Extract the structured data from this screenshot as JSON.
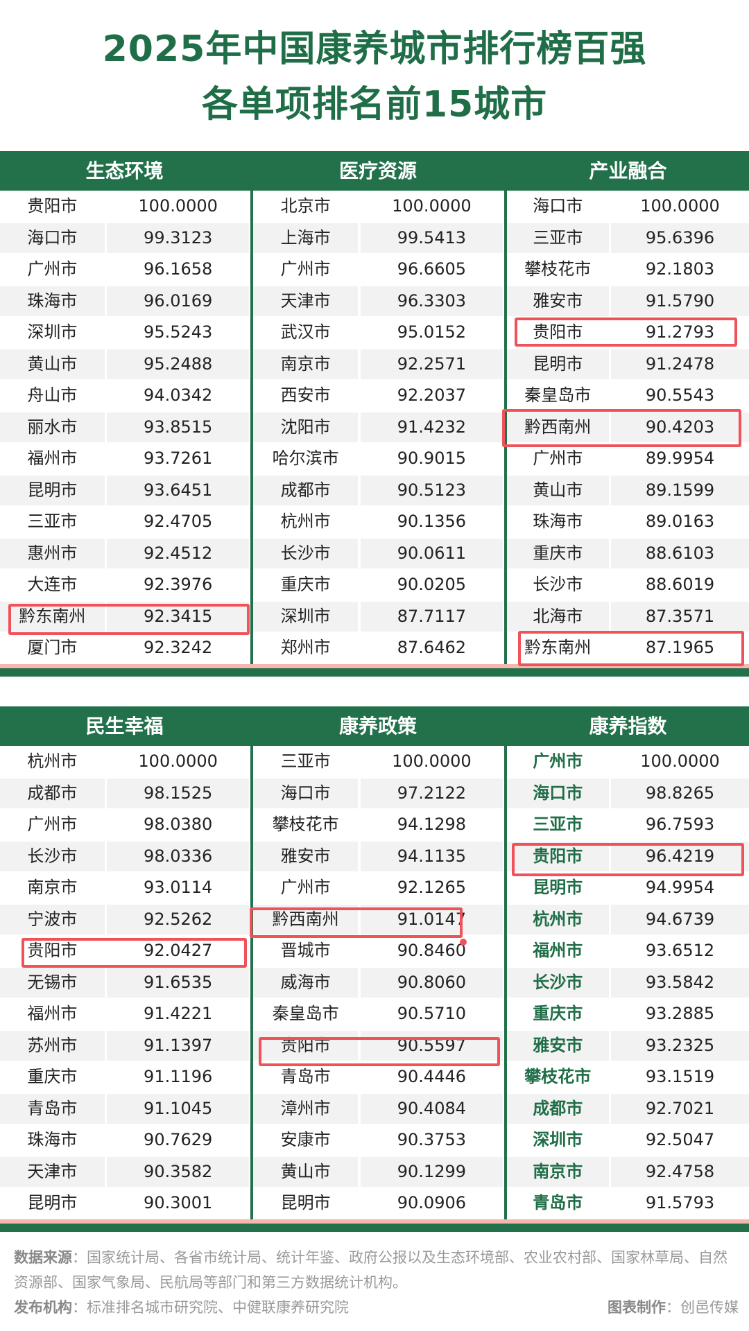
{
  "title": {
    "line1": "2025年中国康养城市排行榜百强",
    "line2": "各单项排名前15城市"
  },
  "colors": {
    "green": "#22714b",
    "highlight": "#f0525a",
    "pink_line": "#f6b5ae"
  },
  "tables": [
    {
      "panels": [
        {
          "header": "生态环境",
          "rows": [
            [
              "贵阳市",
              "100.0000"
            ],
            [
              "海口市",
              "99.3123"
            ],
            [
              "广州市",
              "96.1658"
            ],
            [
              "珠海市",
              "96.0169"
            ],
            [
              "深圳市",
              "95.5243"
            ],
            [
              "黄山市",
              "95.2488"
            ],
            [
              "舟山市",
              "94.0342"
            ],
            [
              "丽水市",
              "93.8515"
            ],
            [
              "福州市",
              "93.7261"
            ],
            [
              "昆明市",
              "93.6451"
            ],
            [
              "三亚市",
              "92.4705"
            ],
            [
              "惠州市",
              "92.4512"
            ],
            [
              "大连市",
              "92.3976"
            ],
            [
              "黔东南州",
              "92.3415"
            ],
            [
              "厦门市",
              "92.3242"
            ]
          ]
        },
        {
          "header": "医疗资源",
          "rows": [
            [
              "北京市",
              "100.0000"
            ],
            [
              "上海市",
              "99.5413"
            ],
            [
              "广州市",
              "96.6605"
            ],
            [
              "天津市",
              "96.3303"
            ],
            [
              "武汉市",
              "95.0152"
            ],
            [
              "南京市",
              "92.2571"
            ],
            [
              "西安市",
              "92.2037"
            ],
            [
              "沈阳市",
              "91.4232"
            ],
            [
              "哈尔滨市",
              "90.9015"
            ],
            [
              "成都市",
              "90.5123"
            ],
            [
              "杭州市",
              "90.1356"
            ],
            [
              "长沙市",
              "90.0611"
            ],
            [
              "重庆市",
              "90.0205"
            ],
            [
              "深圳市",
              "87.7117"
            ],
            [
              "郑州市",
              "87.6462"
            ]
          ]
        },
        {
          "header": "产业融合",
          "rows": [
            [
              "海口市",
              "100.0000"
            ],
            [
              "三亚市",
              "95.6396"
            ],
            [
              "攀枝花市",
              "92.1803"
            ],
            [
              "雅安市",
              "91.5790"
            ],
            [
              "贵阳市",
              "91.2793"
            ],
            [
              "昆明市",
              "91.2478"
            ],
            [
              "秦皇岛市",
              "90.5543"
            ],
            [
              "黔西南州",
              "90.4203"
            ],
            [
              "广州市",
              "89.9954"
            ],
            [
              "黄山市",
              "89.1599"
            ],
            [
              "珠海市",
              "89.0163"
            ],
            [
              "重庆市",
              "88.6103"
            ],
            [
              "长沙市",
              "88.6019"
            ],
            [
              "北海市",
              "87.3571"
            ],
            [
              "黔东南州",
              "87.1965"
            ]
          ]
        }
      ]
    },
    {
      "panels": [
        {
          "header": "民生幸福",
          "rows": [
            [
              "杭州市",
              "100.0000"
            ],
            [
              "成都市",
              "98.1525"
            ],
            [
              "广州市",
              "98.0380"
            ],
            [
              "长沙市",
              "98.0336"
            ],
            [
              "南京市",
              "93.0114"
            ],
            [
              "宁波市",
              "92.5262"
            ],
            [
              "贵阳市",
              "92.0427"
            ],
            [
              "无锡市",
              "91.6535"
            ],
            [
              "福州市",
              "91.4221"
            ],
            [
              "苏州市",
              "91.1397"
            ],
            [
              "重庆市",
              "91.1196"
            ],
            [
              "青岛市",
              "91.1045"
            ],
            [
              "珠海市",
              "90.7629"
            ],
            [
              "天津市",
              "90.3582"
            ],
            [
              "昆明市",
              "90.3001"
            ]
          ]
        },
        {
          "header": "康养政策",
          "rows": [
            [
              "三亚市",
              "100.0000"
            ],
            [
              "海口市",
              "97.2122"
            ],
            [
              "攀枝花市",
              "94.1298"
            ],
            [
              "雅安市",
              "94.1135"
            ],
            [
              "广州市",
              "92.1265"
            ],
            [
              "黔西南州",
              "91.0147"
            ],
            [
              "晋城市",
              "90.8460"
            ],
            [
              "威海市",
              "90.8060"
            ],
            [
              "秦皇岛市",
              "90.5710"
            ],
            [
              "贵阳市",
              "90.5597"
            ],
            [
              "青岛市",
              "90.4446"
            ],
            [
              "漳州市",
              "90.4084"
            ],
            [
              "安康市",
              "90.3753"
            ],
            [
              "黄山市",
              "90.1299"
            ],
            [
              "昆明市",
              "90.0906"
            ]
          ]
        },
        {
          "header": "康养指数",
          "green_names": true,
          "rows": [
            [
              "广州市",
              "100.0000"
            ],
            [
              "海口市",
              "98.8265"
            ],
            [
              "三亚市",
              "96.7593"
            ],
            [
              "贵阳市",
              "96.4219"
            ],
            [
              "昆明市",
              "94.9954"
            ],
            [
              "杭州市",
              "94.6739"
            ],
            [
              "福州市",
              "93.6512"
            ],
            [
              "长沙市",
              "93.5842"
            ],
            [
              "重庆市",
              "93.2885"
            ],
            [
              "雅安市",
              "93.2325"
            ],
            [
              "攀枝花市",
              "93.1519"
            ],
            [
              "成都市",
              "92.7021"
            ],
            [
              "深圳市",
              "92.5047"
            ],
            [
              "南京市",
              "92.4758"
            ],
            [
              "青岛市",
              "91.5793"
            ]
          ]
        }
      ]
    }
  ],
  "footer": {
    "source_label": "数据来源",
    "source_text": "：国家统计局、各省市统计局、统计年鉴、政府公报以及生态环境部、农业农村部、国家林草局、自然资源部、国家气象局、民航局等部门和第三方数据统计机构。",
    "publisher_label": "发布机构",
    "publisher_text": "：标准排名城市研究院、中健联康养研究院",
    "maker_label": "图表制作",
    "maker_text": "：创邑传媒"
  }
}
